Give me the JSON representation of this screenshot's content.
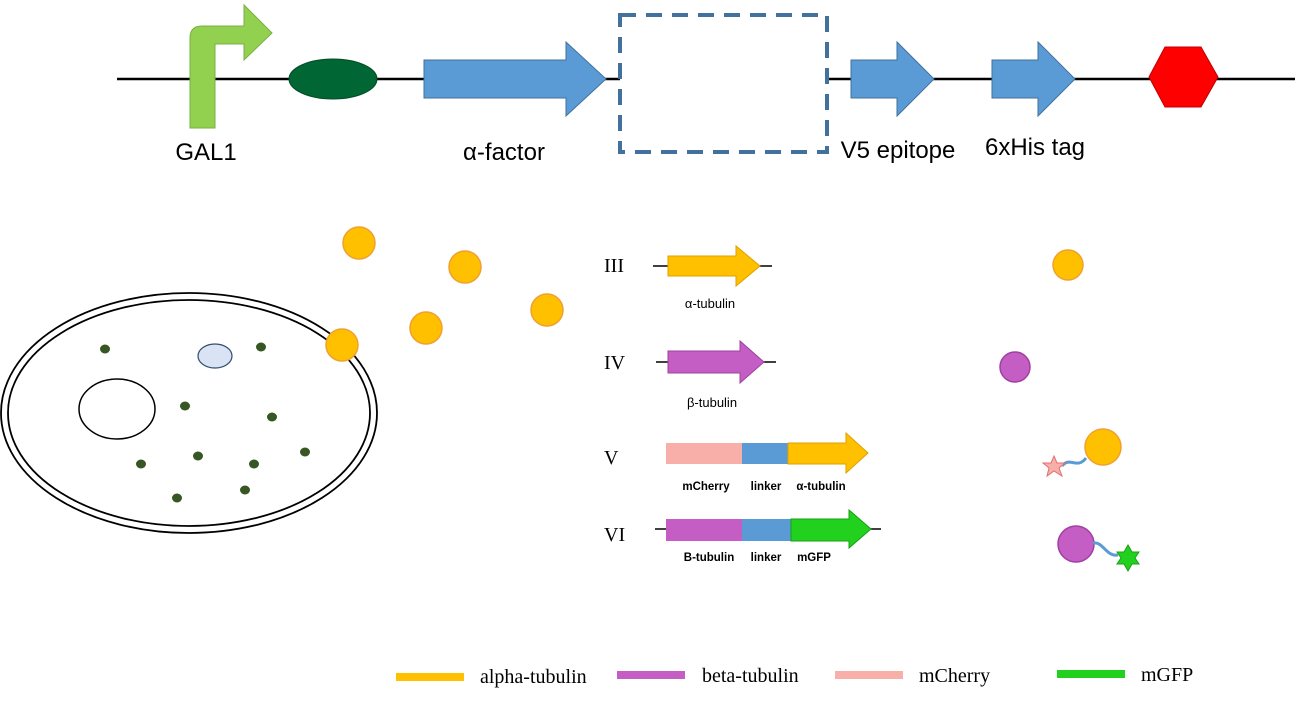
{
  "construct": {
    "promoter_label": "GAL1",
    "signal_label": "α-factor",
    "v5_label": "V5 epitope",
    "his_label": "6xHis tag"
  },
  "genes": [
    {
      "roman": "III",
      "labels": [
        "α-tubulin"
      ]
    },
    {
      "roman": "IV",
      "labels": [
        "β-tubulin"
      ]
    },
    {
      "roman": "V",
      "labels": [
        "mCherry",
        "linker",
        "α-tubulin"
      ]
    },
    {
      "roman": "VI",
      "labels": [
        "B-tubulin",
        "linker",
        "mGFP"
      ]
    }
  ],
  "legend": [
    {
      "label": "alpha-tubulin",
      "color": "#FFC000"
    },
    {
      "label": "beta-tubulin",
      "color": "#C45DC4"
    },
    {
      "label": "mCherry",
      "color": "#F8AFA9"
    },
    {
      "label": "mGFP",
      "color": "#22D11D"
    }
  ],
  "colors": {
    "promoter_arrow": "#92D050",
    "rbs_oval": "#006633",
    "blue_arrow": "#5B9BD5",
    "terminator": "#FF0000",
    "dashed_box": "#41719C",
    "organelle_dots": "#375623",
    "vacuole": "#DAE3F3"
  }
}
